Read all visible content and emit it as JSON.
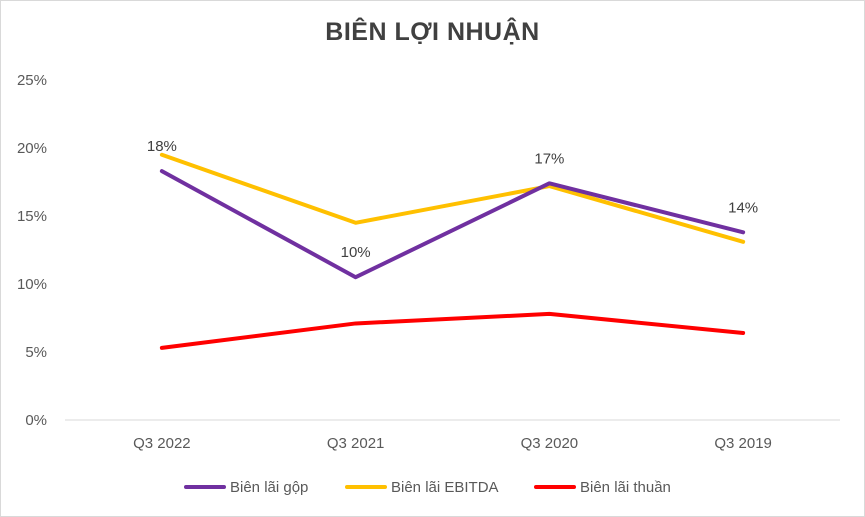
{
  "chart_data": {
    "type": "line",
    "title": "BIÊN LỢI NHUẬN",
    "categories": [
      "Q3 2022",
      "Q3 2021",
      "Q3 2020",
      "Q3 2019"
    ],
    "y_ticks": [
      "0%",
      "5%",
      "10%",
      "15%",
      "20%",
      "25%"
    ],
    "ylim": [
      0,
      25
    ],
    "grid": false,
    "legend_position": "bottom",
    "series": [
      {
        "name": "Biên lãi gộp",
        "color": "#7030a0",
        "values": [
          18.3,
          10.5,
          17.4,
          13.8
        ],
        "labels": [
          "18%",
          "10%",
          "17%",
          "14%"
        ]
      },
      {
        "name": "Biên lãi EBITDA",
        "color": "#ffc000",
        "values": [
          19.5,
          14.5,
          17.2,
          13.1
        ]
      },
      {
        "name": "Biên lãi thuần",
        "color": "#ff0000",
        "values": [
          5.3,
          7.1,
          7.8,
          6.4
        ]
      }
    ]
  }
}
